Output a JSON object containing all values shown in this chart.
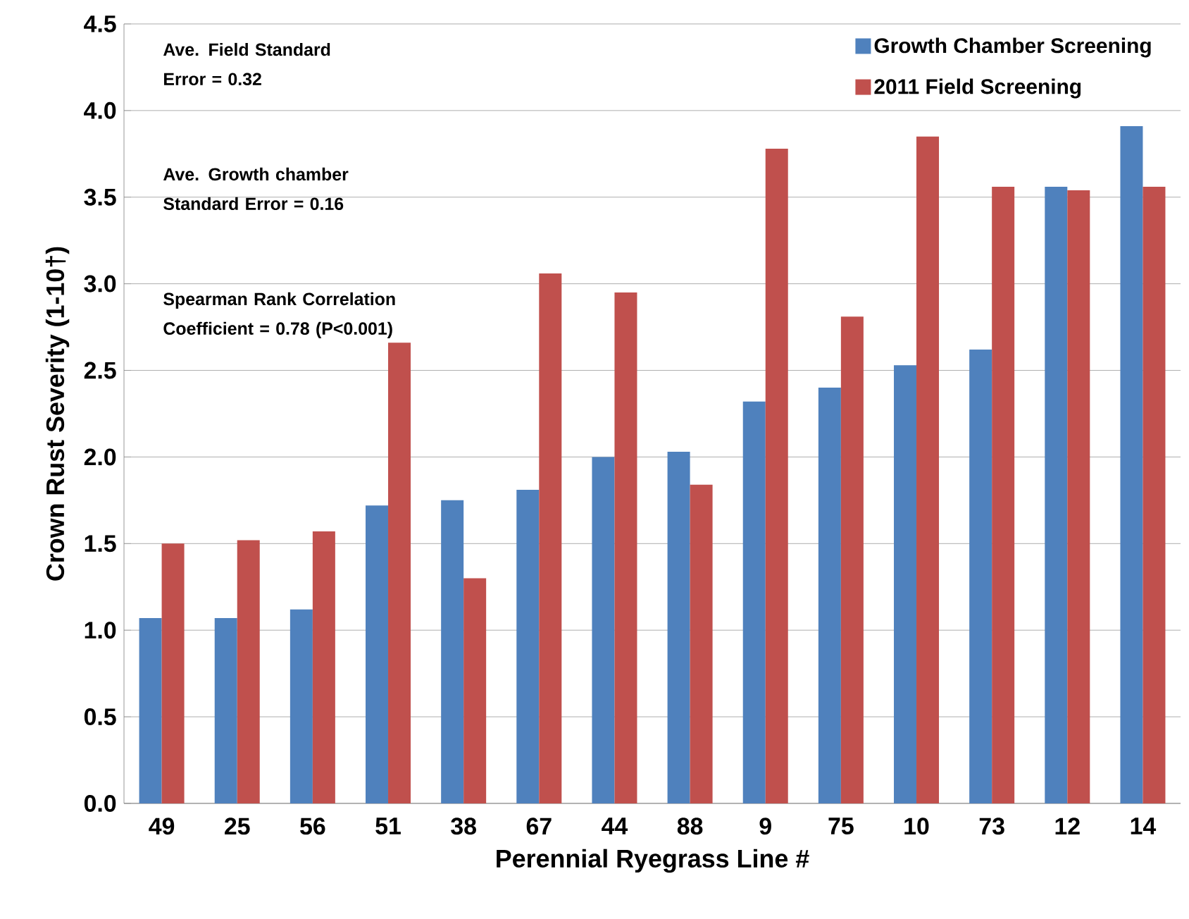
{
  "chart_data": {
    "type": "bar",
    "xlabel": "Perennial Ryegrass Line #",
    "ylabel": "Crown Rust  Severity (1-10†)",
    "categories": [
      "49",
      "25",
      "56",
      "51",
      "38",
      "67",
      "44",
      "88",
      "9",
      "75",
      "10",
      "73",
      "12",
      "14"
    ],
    "series": [
      {
        "name": "Growth Chamber Screening",
        "color": "#4f81bd",
        "values": [
          1.07,
          1.07,
          1.12,
          1.72,
          1.75,
          1.81,
          2.0,
          2.03,
          2.32,
          2.4,
          2.53,
          2.62,
          3.56,
          3.91
        ]
      },
      {
        "name": "2011 Field Screening",
        "color": "#c0504d",
        "values": [
          1.5,
          1.52,
          1.57,
          2.66,
          1.3,
          3.06,
          2.95,
          1.84,
          3.78,
          2.81,
          3.85,
          3.56,
          3.54,
          3.56
        ]
      }
    ],
    "ylim": [
      0,
      4.5
    ],
    "yticks": [
      {
        "value": 0,
        "label": "0.0"
      },
      {
        "value": 0.5,
        "label": "0.5"
      },
      {
        "value": 1,
        "label": "1.0"
      },
      {
        "value": 1.5,
        "label": "1.5"
      },
      {
        "value": 2,
        "label": "2.0"
      },
      {
        "value": 2.5,
        "label": "2.5"
      },
      {
        "value": 3,
        "label": "3.0"
      },
      {
        "value": 3.5,
        "label": "3.5"
      },
      {
        "value": 4,
        "label": "4.0"
      },
      {
        "value": 4.5,
        "label": "4.5"
      }
    ],
    "grid": "y",
    "legend": "top right",
    "annotations": [
      "Ave. Field Standard Error = 0.32",
      "Ave. Growth chamber Standard Error = 0.16",
      "Spearman Rank Correlation Coefficient = 0.78  (P<0.001)"
    ]
  }
}
